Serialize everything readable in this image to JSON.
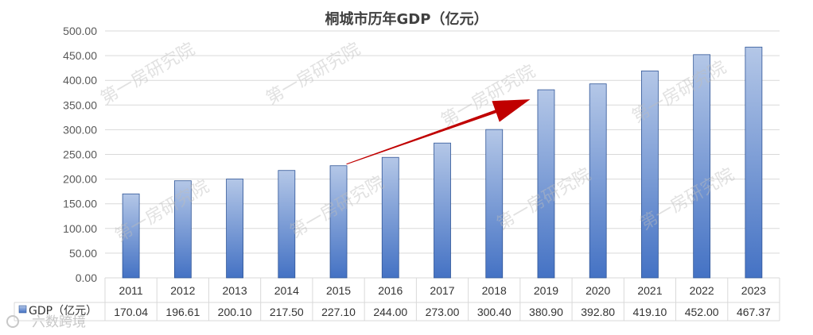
{
  "chart_data": {
    "type": "bar",
    "title": "桐城市历年GDP（亿元）",
    "categories": [
      "2011",
      "2012",
      "2013",
      "2014",
      "2015",
      "2016",
      "2017",
      "2018",
      "2019",
      "2020",
      "2021",
      "2022",
      "2023"
    ],
    "series": [
      {
        "name": "GDP（亿元）",
        "values": [
          170.04,
          196.61,
          200.1,
          217.5,
          227.1,
          244.0,
          273.0,
          300.4,
          380.9,
          392.8,
          419.1,
          452.0,
          467.37
        ],
        "value_labels": [
          "170.04",
          "196.61",
          "200.10",
          "217.50",
          "227.10",
          "244.00",
          "273.00",
          "300.40",
          "380.90",
          "392.80",
          "419.10",
          "452.00",
          "467.37"
        ]
      }
    ],
    "ylim": [
      0,
      500
    ],
    "yticks": [
      "0.00",
      "50.00",
      "100.00",
      "150.00",
      "200.00",
      "250.00",
      "300.00",
      "350.00",
      "400.00",
      "450.00",
      "500.00"
    ],
    "grid": true,
    "data_table": true,
    "bar_color_top": "#b4c7e7",
    "bar_color_bottom": "#4472c4",
    "arrow_color": "#c00000",
    "annotation": "trend arrow from 2015 to 2019"
  },
  "watermark": "第一房研究院",
  "brand": "六数跨境"
}
